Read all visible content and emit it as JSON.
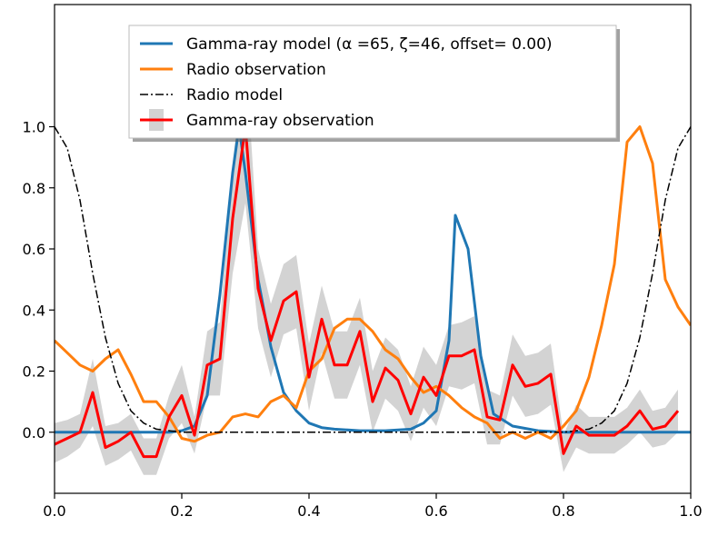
{
  "chart_data": {
    "type": "line",
    "title": "",
    "xlabel": "",
    "ylabel": "",
    "xlim": [
      0.0,
      1.0
    ],
    "ylim": [
      -0.2,
      1.4
    ],
    "x_ticks": [
      0.0,
      0.2,
      0.4,
      0.6,
      0.8,
      1.0
    ],
    "x_tick_labels": [
      "0.0",
      "0.2",
      "0.4",
      "0.6",
      "0.8",
      "1.0"
    ],
    "y_ticks": [
      0.0,
      0.2,
      0.4,
      0.6,
      0.8,
      1.0
    ],
    "y_tick_labels": [
      "0.0",
      "0.2",
      "0.4",
      "0.6",
      "0.8",
      "1.0"
    ],
    "legend_position": "top-center",
    "legend": [
      "Gamma-ray model (α =65, ζ=46, offset= 0.00)",
      "Radio observation",
      "Radio model",
      "Gamma-ray observation"
    ],
    "series": [
      {
        "name": "Gamma-ray model (α =65, ζ=46, offset= 0.00)",
        "style": "solid",
        "color": "#1f77b4",
        "x": [
          0.0,
          0.18,
          0.2,
          0.22,
          0.24,
          0.26,
          0.28,
          0.29,
          0.3,
          0.32,
          0.34,
          0.36,
          0.38,
          0.4,
          0.42,
          0.44,
          0.48,
          0.52,
          0.56,
          0.58,
          0.6,
          0.62,
          0.63,
          0.65,
          0.67,
          0.69,
          0.72,
          0.76,
          0.8,
          1.0
        ],
        "values": [
          0.0,
          0.0,
          0.005,
          0.02,
          0.12,
          0.45,
          0.85,
          1.0,
          0.85,
          0.5,
          0.28,
          0.13,
          0.07,
          0.03,
          0.015,
          0.01,
          0.005,
          0.005,
          0.01,
          0.03,
          0.07,
          0.3,
          0.71,
          0.6,
          0.25,
          0.06,
          0.02,
          0.005,
          0.0,
          0.0
        ]
      },
      {
        "name": "Radio observation",
        "style": "solid",
        "color": "#ff7f0e",
        "x": [
          0.0,
          0.02,
          0.04,
          0.06,
          0.08,
          0.1,
          0.12,
          0.14,
          0.16,
          0.18,
          0.2,
          0.22,
          0.24,
          0.26,
          0.28,
          0.3,
          0.32,
          0.34,
          0.36,
          0.38,
          0.4,
          0.42,
          0.44,
          0.46,
          0.48,
          0.5,
          0.52,
          0.54,
          0.56,
          0.58,
          0.6,
          0.62,
          0.64,
          0.66,
          0.68,
          0.7,
          0.72,
          0.74,
          0.76,
          0.78,
          0.8,
          0.82,
          0.84,
          0.86,
          0.88,
          0.9,
          0.92,
          0.94,
          0.96,
          0.98,
          1.0
        ],
        "values": [
          0.3,
          0.26,
          0.22,
          0.2,
          0.24,
          0.27,
          0.19,
          0.1,
          0.1,
          0.05,
          -0.02,
          -0.03,
          -0.01,
          0.0,
          0.05,
          0.06,
          0.05,
          0.1,
          0.12,
          0.08,
          0.2,
          0.24,
          0.34,
          0.37,
          0.37,
          0.33,
          0.27,
          0.24,
          0.18,
          0.13,
          0.15,
          0.12,
          0.08,
          0.05,
          0.03,
          -0.02,
          0.0,
          -0.02,
          0.0,
          -0.02,
          0.02,
          0.07,
          0.18,
          0.35,
          0.55,
          0.95,
          1.0,
          0.88,
          0.5,
          0.41,
          0.35
        ]
      },
      {
        "name": "Radio model",
        "style": "dashdot",
        "color": "#000000",
        "x": [
          0.0,
          0.02,
          0.04,
          0.06,
          0.08,
          0.1,
          0.12,
          0.14,
          0.16,
          0.18,
          0.2,
          0.3,
          0.4,
          0.5,
          0.6,
          0.7,
          0.8,
          0.82,
          0.84,
          0.86,
          0.88,
          0.9,
          0.92,
          0.94,
          0.96,
          0.98,
          1.0
        ],
        "values": [
          1.0,
          0.93,
          0.76,
          0.52,
          0.31,
          0.16,
          0.07,
          0.03,
          0.01,
          0.005,
          0.0,
          0.0,
          0.0,
          0.0,
          0.0,
          0.0,
          0.0,
          0.005,
          0.01,
          0.03,
          0.07,
          0.16,
          0.31,
          0.52,
          0.76,
          0.93,
          1.0
        ]
      },
      {
        "name": "Gamma-ray observation",
        "style": "solid",
        "color": "#ff0000",
        "band_color": "#d3d3d3",
        "x": [
          0.0,
          0.02,
          0.04,
          0.06,
          0.08,
          0.1,
          0.12,
          0.14,
          0.16,
          0.18,
          0.2,
          0.22,
          0.24,
          0.26,
          0.28,
          0.3,
          0.32,
          0.34,
          0.36,
          0.38,
          0.4,
          0.42,
          0.44,
          0.46,
          0.48,
          0.5,
          0.52,
          0.54,
          0.56,
          0.58,
          0.6,
          0.62,
          0.64,
          0.66,
          0.68,
          0.7,
          0.72,
          0.74,
          0.76,
          0.78,
          0.8,
          0.82,
          0.84,
          0.86,
          0.88,
          0.9,
          0.92,
          0.94,
          0.96,
          0.98
        ],
        "values": [
          -0.04,
          -0.02,
          0.0,
          0.13,
          -0.05,
          -0.03,
          0.0,
          -0.08,
          -0.08,
          0.05,
          0.12,
          -0.01,
          0.22,
          0.24,
          0.7,
          1.0,
          0.47,
          0.3,
          0.43,
          0.46,
          0.18,
          0.37,
          0.22,
          0.22,
          0.33,
          0.1,
          0.21,
          0.17,
          0.06,
          0.18,
          0.12,
          0.25,
          0.25,
          0.27,
          0.05,
          0.04,
          0.22,
          0.15,
          0.16,
          0.19,
          -0.07,
          0.02,
          -0.01,
          -0.01,
          -0.01,
          0.02,
          0.07,
          0.01,
          0.02,
          0.07
        ],
        "lower": [
          -0.1,
          -0.08,
          -0.05,
          0.02,
          -0.11,
          -0.09,
          -0.06,
          -0.14,
          -0.14,
          -0.02,
          0.03,
          -0.07,
          0.12,
          0.12,
          0.52,
          0.75,
          0.34,
          0.18,
          0.32,
          0.34,
          0.07,
          0.26,
          0.11,
          0.11,
          0.22,
          0.0,
          0.11,
          0.07,
          -0.03,
          0.08,
          0.02,
          0.15,
          0.14,
          0.16,
          -0.04,
          -0.04,
          0.12,
          0.05,
          0.06,
          0.09,
          -0.13,
          -0.05,
          -0.07,
          -0.07,
          -0.07,
          -0.04,
          0.0,
          -0.05,
          -0.04,
          0.0
        ],
        "upper": [
          0.03,
          0.04,
          0.06,
          0.24,
          0.02,
          0.03,
          0.06,
          -0.02,
          -0.02,
          0.12,
          0.22,
          0.05,
          0.33,
          0.36,
          0.88,
          1.25,
          0.6,
          0.42,
          0.55,
          0.58,
          0.29,
          0.48,
          0.33,
          0.33,
          0.44,
          0.2,
          0.31,
          0.27,
          0.15,
          0.28,
          0.22,
          0.35,
          0.36,
          0.38,
          0.14,
          0.12,
          0.32,
          0.25,
          0.26,
          0.29,
          -0.01,
          0.09,
          0.05,
          0.05,
          0.05,
          0.08,
          0.14,
          0.07,
          0.08,
          0.14
        ]
      }
    ]
  }
}
